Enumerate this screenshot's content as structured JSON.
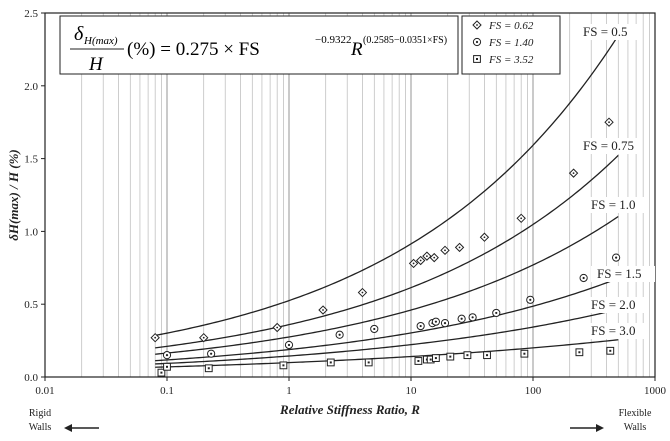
{
  "chart_data": {
    "type": "scatter",
    "x_scale": "log",
    "xlim": [
      0.01,
      1000
    ],
    "ylim": [
      0,
      2.5
    ],
    "x_ticks": [
      "0.01",
      "0.1",
      "1",
      "10",
      "100",
      "1000"
    ],
    "y_ticks": [
      "0.0",
      "0.5",
      "1.0",
      "1.5",
      "2.0",
      "2.5"
    ],
    "xlabel": "Relative Stiffness Ratio, R",
    "ylabel": "δH(max) / H (%)",
    "grid": "vertical minor log lines",
    "equation": {
      "lhs_num": "δ",
      "lhs_num_sub": "H(max)",
      "lhs_den": "H",
      "rhs": "(%) = 0.275 × FS",
      "rhs_exp": "−0.9322",
      "rhs_r": "R",
      "rhs_r_exp": "(0.2585−0.0351×FS)"
    },
    "legend": {
      "position": "top-right",
      "entries": [
        {
          "marker": "diamond",
          "label": "FS = 0.62"
        },
        {
          "marker": "circle-dot",
          "label": "FS = 1.40"
        },
        {
          "marker": "square-dot",
          "label": "FS = 3.52"
        }
      ]
    },
    "curves": [
      {
        "label": "FS = 0.5",
        "fs": 0.5
      },
      {
        "label": "FS = 0.75",
        "fs": 0.75
      },
      {
        "label": "FS = 1.0",
        "fs": 1.0
      },
      {
        "label": "FS = 1.5",
        "fs": 1.5
      },
      {
        "label": "FS = 2.0",
        "fs": 2.0
      },
      {
        "label": "FS = 3.0",
        "fs": 3.0
      }
    ],
    "series": [
      {
        "name": "FS = 0.62",
        "marker": "diamond",
        "points": [
          [
            0.08,
            0.27
          ],
          [
            0.2,
            0.27
          ],
          [
            0.8,
            0.34
          ],
          [
            1.9,
            0.46
          ],
          [
            4,
            0.58
          ],
          [
            10.5,
            0.78
          ],
          [
            12,
            0.8
          ],
          [
            13.5,
            0.83
          ],
          [
            15.5,
            0.82
          ],
          [
            19,
            0.87
          ],
          [
            25,
            0.89
          ],
          [
            40,
            0.96
          ],
          [
            80,
            1.09
          ],
          [
            215,
            1.4
          ],
          [
            420,
            1.75
          ]
        ]
      },
      {
        "name": "FS = 1.40",
        "marker": "circle-dot",
        "points": [
          [
            0.1,
            0.15
          ],
          [
            0.23,
            0.16
          ],
          [
            1,
            0.22
          ],
          [
            2.6,
            0.29
          ],
          [
            5,
            0.33
          ],
          [
            12,
            0.35
          ],
          [
            15,
            0.37
          ],
          [
            16,
            0.38
          ],
          [
            19,
            0.37
          ],
          [
            26,
            0.4
          ],
          [
            32,
            0.41
          ],
          [
            50,
            0.44
          ],
          [
            95,
            0.53
          ],
          [
            260,
            0.68
          ],
          [
            480,
            0.82
          ]
        ]
      },
      {
        "name": "FS = 3.52",
        "marker": "square-dot",
        "points": [
          [
            0.09,
            0.03
          ],
          [
            0.1,
            0.07
          ],
          [
            0.22,
            0.06
          ],
          [
            0.9,
            0.08
          ],
          [
            2.2,
            0.1
          ],
          [
            4.5,
            0.1
          ],
          [
            11.5,
            0.11
          ],
          [
            13.5,
            0.12
          ],
          [
            14.5,
            0.12
          ],
          [
            16,
            0.13
          ],
          [
            21,
            0.14
          ],
          [
            29,
            0.15
          ],
          [
            42,
            0.15
          ],
          [
            85,
            0.16
          ],
          [
            240,
            0.17
          ],
          [
            430,
            0.18
          ]
        ]
      }
    ]
  },
  "notes": {
    "left_label_1": "Rigid",
    "left_label_2": "Walls",
    "right_label_1": "Flexible",
    "right_label_2": "Walls"
  }
}
